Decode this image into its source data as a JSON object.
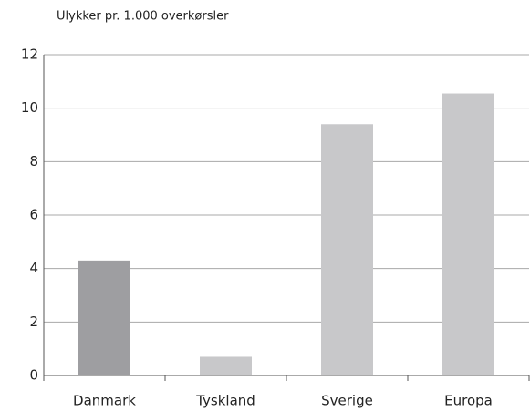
{
  "chart_data": {
    "type": "bar",
    "title": "Ulykker pr. 1.000 overkørsler",
    "categories": [
      "Danmark",
      "Tyskland",
      "Sverige",
      "Europa"
    ],
    "values": [
      4.3,
      0.7,
      9.4,
      10.55
    ],
    "colors": [
      "#9e9ea1",
      "#c8c8ca",
      "#c8c8ca",
      "#c8c8ca"
    ],
    "ylim": [
      0,
      12
    ],
    "yticks": [
      0,
      2,
      4,
      6,
      8,
      10,
      12
    ],
    "grid": true
  }
}
